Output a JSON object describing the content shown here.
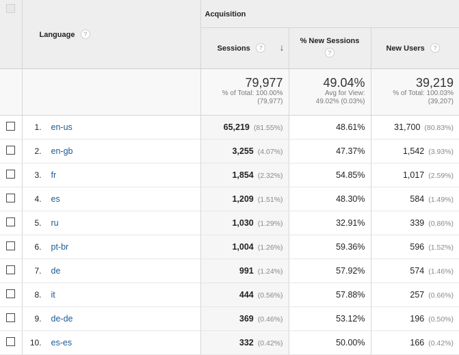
{
  "header": {
    "group": "Acquisition",
    "language": "Language",
    "sessions": "Sessions",
    "new_sessions": "% New Sessions",
    "new_users": "New Users",
    "help": "?",
    "sort_arrow": "↓"
  },
  "totals": {
    "sessions": {
      "value": "79,977",
      "sub1": "% of Total: 100.00%",
      "sub2": "(79,977)"
    },
    "new_sessions": {
      "value": "49.04%",
      "sub1": "Avg for View:",
      "sub2": "49.02% (0.03%)"
    },
    "new_users": {
      "value": "39,219",
      "sub1": "% of Total: 100.03%",
      "sub2": "(39,207)"
    }
  },
  "rows": [
    {
      "idx": "1.",
      "lang": "en-us",
      "sessions": "65,219",
      "sessions_pct": "(81.55%)",
      "new_sessions": "48.61%",
      "new_users": "31,700",
      "new_users_pct": "(80.83%)"
    },
    {
      "idx": "2.",
      "lang": "en-gb",
      "sessions": "3,255",
      "sessions_pct": "(4.07%)",
      "new_sessions": "47.37%",
      "new_users": "1,542",
      "new_users_pct": "(3.93%)"
    },
    {
      "idx": "3.",
      "lang": "fr",
      "sessions": "1,854",
      "sessions_pct": "(2.32%)",
      "new_sessions": "54.85%",
      "new_users": "1,017",
      "new_users_pct": "(2.59%)"
    },
    {
      "idx": "4.",
      "lang": "es",
      "sessions": "1,209",
      "sessions_pct": "(1.51%)",
      "new_sessions": "48.30%",
      "new_users": "584",
      "new_users_pct": "(1.49%)"
    },
    {
      "idx": "5.",
      "lang": "ru",
      "sessions": "1,030",
      "sessions_pct": "(1.29%)",
      "new_sessions": "32.91%",
      "new_users": "339",
      "new_users_pct": "(0.86%)"
    },
    {
      "idx": "6.",
      "lang": "pt-br",
      "sessions": "1,004",
      "sessions_pct": "(1.26%)",
      "new_sessions": "59.36%",
      "new_users": "596",
      "new_users_pct": "(1.52%)"
    },
    {
      "idx": "7.",
      "lang": "de",
      "sessions": "991",
      "sessions_pct": "(1.24%)",
      "new_sessions": "57.92%",
      "new_users": "574",
      "new_users_pct": "(1.46%)"
    },
    {
      "idx": "8.",
      "lang": "it",
      "sessions": "444",
      "sessions_pct": "(0.56%)",
      "new_sessions": "57.88%",
      "new_users": "257",
      "new_users_pct": "(0.66%)"
    },
    {
      "idx": "9.",
      "lang": "de-de",
      "sessions": "369",
      "sessions_pct": "(0.46%)",
      "new_sessions": "53.12%",
      "new_users": "196",
      "new_users_pct": "(0.50%)"
    },
    {
      "idx": "10.",
      "lang": "es-es",
      "sessions": "332",
      "sessions_pct": "(0.42%)",
      "new_sessions": "50.00%",
      "new_users": "166",
      "new_users_pct": "(0.42%)"
    }
  ]
}
